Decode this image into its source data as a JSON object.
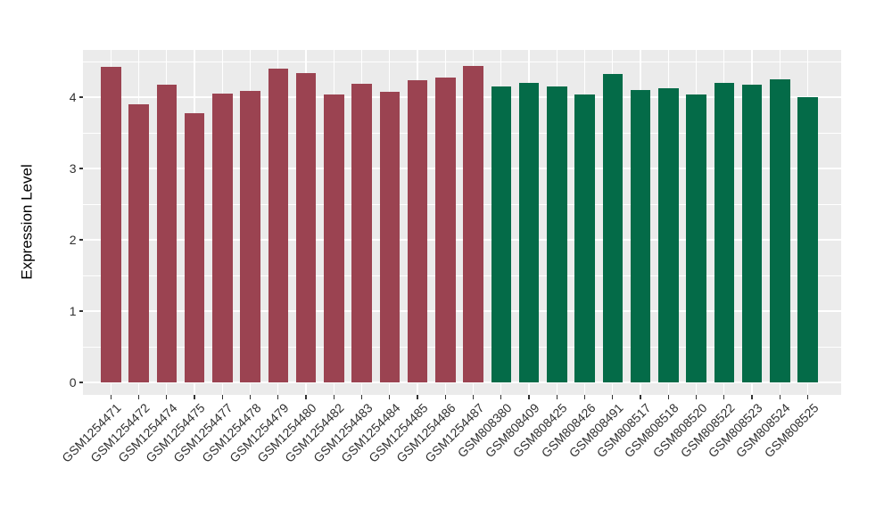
{
  "chart_data": {
    "type": "bar",
    "title": "",
    "xlabel": "",
    "ylabel": "Expression Level",
    "ylim": [
      0,
      4.85
    ],
    "y_major_ticks": [
      0,
      1,
      2,
      3,
      4
    ],
    "y_minor_ticks": [
      0.5,
      1.5,
      2.5,
      3.5,
      4.5
    ],
    "grid": "on",
    "legend_position": "none",
    "panel_background": "#EBEBEB",
    "grid_color": "#FFFFFF",
    "tick_mark_color": "#333333",
    "tick_label_color": "#303030",
    "group_colors": {
      "A": "#9B4351",
      "B": "#046B48"
    },
    "bars": [
      {
        "label": "GSM1254471",
        "value": 4.43,
        "group": "A"
      },
      {
        "label": "GSM1254472",
        "value": 3.9,
        "group": "A"
      },
      {
        "label": "GSM1254474",
        "value": 4.18,
        "group": "A"
      },
      {
        "label": "GSM1254475",
        "value": 3.78,
        "group": "A"
      },
      {
        "label": "GSM1254477",
        "value": 4.05,
        "group": "A"
      },
      {
        "label": "GSM1254478",
        "value": 4.09,
        "group": "A"
      },
      {
        "label": "GSM1254479",
        "value": 4.4,
        "group": "A"
      },
      {
        "label": "GSM1254480",
        "value": 4.34,
        "group": "A"
      },
      {
        "label": "GSM1254482",
        "value": 4.04,
        "group": "A"
      },
      {
        "label": "GSM1254483",
        "value": 4.19,
        "group": "A"
      },
      {
        "label": "GSM1254484",
        "value": 4.07,
        "group": "A"
      },
      {
        "label": "GSM1254485",
        "value": 4.24,
        "group": "A"
      },
      {
        "label": "GSM1254486",
        "value": 4.28,
        "group": "A"
      },
      {
        "label": "GSM1254487",
        "value": 4.44,
        "group": "A"
      },
      {
        "label": "GSM808380",
        "value": 4.15,
        "group": "B"
      },
      {
        "label": "GSM808409",
        "value": 4.2,
        "group": "B"
      },
      {
        "label": "GSM808425",
        "value": 4.15,
        "group": "B"
      },
      {
        "label": "GSM808426",
        "value": 4.04,
        "group": "B"
      },
      {
        "label": "GSM808491",
        "value": 4.33,
        "group": "B"
      },
      {
        "label": "GSM808517",
        "value": 4.1,
        "group": "B"
      },
      {
        "label": "GSM808518",
        "value": 4.12,
        "group": "B"
      },
      {
        "label": "GSM808520",
        "value": 4.04,
        "group": "B"
      },
      {
        "label": "GSM808522",
        "value": 4.2,
        "group": "B"
      },
      {
        "label": "GSM808523",
        "value": 4.17,
        "group": "B"
      },
      {
        "label": "GSM808524",
        "value": 4.25,
        "group": "B"
      },
      {
        "label": "GSM808525",
        "value": 4.0,
        "group": "B"
      }
    ]
  }
}
